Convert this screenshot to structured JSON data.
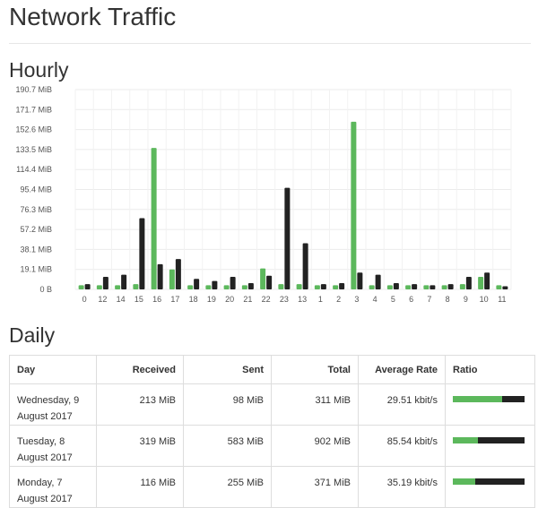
{
  "page": {
    "title": "Network Traffic",
    "hourly_heading": "Hourly",
    "daily_heading": "Daily"
  },
  "colors": {
    "received": "#5cb85c",
    "sent": "#222222",
    "grid": "#ebebeb"
  },
  "chart_data": {
    "type": "bar",
    "title": "",
    "xlabel": "",
    "ylabel": "",
    "unit": "MiB",
    "categories": [
      "0",
      "12",
      "14",
      "15",
      "16",
      "17",
      "18",
      "19",
      "20",
      "21",
      "22",
      "23",
      "13",
      "1",
      "2",
      "3",
      "4",
      "5",
      "6",
      "7",
      "8",
      "9",
      "10",
      "11"
    ],
    "ylim": [
      0,
      190.7
    ],
    "yticks": [
      "0 B",
      "19.1 MiB",
      "38.1 MiB",
      "57.2 MiB",
      "76.3 MiB",
      "95.4 MiB",
      "114.4 MiB",
      "133.5 MiB",
      "152.6 MiB",
      "171.7 MiB",
      "190.7 MiB"
    ],
    "grid": true,
    "series": [
      {
        "values": [
          4,
          4,
          4,
          5,
          135,
          19,
          4,
          4,
          4,
          4,
          20,
          5,
          5,
          4,
          4,
          160,
          4,
          4,
          4,
          4,
          4,
          5,
          12,
          4
        ]
      },
      {
        "values": [
          5,
          12,
          14,
          68,
          24,
          29,
          10,
          8,
          12,
          6,
          13,
          97,
          44,
          5,
          6,
          16,
          14,
          6,
          5,
          4,
          5,
          12,
          16,
          3
        ]
      }
    ]
  },
  "daily": {
    "columns": [
      "Day",
      "Received",
      "Sent",
      "Total",
      "Average Rate",
      "Ratio"
    ],
    "rows": [
      {
        "day": "Wednesday, 9 August 2017",
        "received": "213 MiB",
        "sent": "98 MiB",
        "total": "311 MiB",
        "rate": "29.51 kbit/s",
        "ratio_received": 0.685
      },
      {
        "day": "Tuesday, 8 August 2017",
        "received": "319 MiB",
        "sent": "583 MiB",
        "total": "902 MiB",
        "rate": "85.54 kbit/s",
        "ratio_received": 0.354
      },
      {
        "day": "Monday, 7 August 2017",
        "received": "116 MiB",
        "sent": "255 MiB",
        "total": "371 MiB",
        "rate": "35.19 kbit/s",
        "ratio_received": 0.313
      }
    ]
  }
}
